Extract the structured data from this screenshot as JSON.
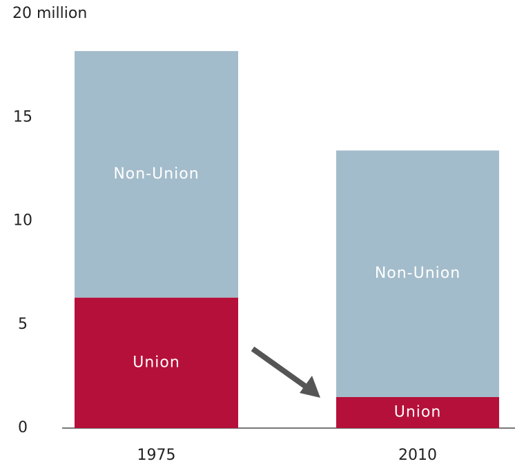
{
  "chart_data": {
    "type": "bar",
    "stacked": true,
    "categories": [
      "1975",
      "2010"
    ],
    "series": [
      {
        "name": "Union",
        "color": "#b5103a",
        "values": [
          6.3,
          1.5
        ]
      },
      {
        "name": "Non-Union",
        "color": "#a3bccb",
        "values": [
          11.9,
          11.9
        ]
      }
    ],
    "ylim": [
      0,
      20
    ],
    "yticks": [
      0,
      5,
      10,
      15,
      {
        "value": 20,
        "label": "20 million"
      }
    ],
    "grid": false
  }
}
